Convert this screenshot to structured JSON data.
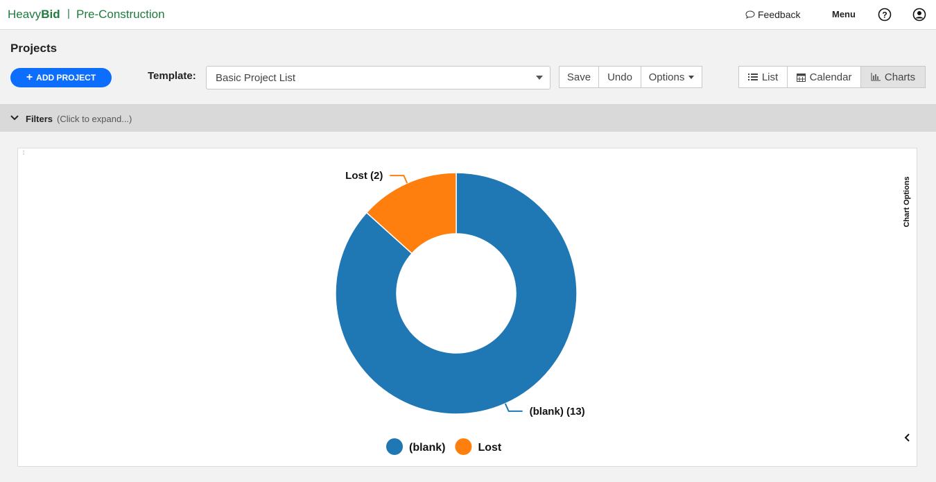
{
  "header": {
    "brand_light": "Heavy",
    "brand_bold": "Bid",
    "product": "Pre-Construction",
    "feedback": "Feedback",
    "menu": "Menu"
  },
  "toolbar": {
    "title": "Projects",
    "add_button": "ADD PROJECT",
    "template_label": "Template:",
    "template_value": "Basic Project List",
    "actions": [
      "Save",
      "Undo",
      "Options"
    ],
    "views": [
      "List",
      "Calendar",
      "Charts"
    ]
  },
  "filters": {
    "label": "Filters",
    "hint": "(Click to expand...)"
  },
  "chart_panel": {
    "options_label": "Chart Options"
  },
  "chart_data": {
    "type": "donut",
    "categories": [
      "(blank)",
      "Lost"
    ],
    "values": [
      13,
      2
    ],
    "value_labels": [
      "(blank) (13)",
      "Lost (2)"
    ],
    "series_colors": [
      "#1f77b4",
      "#ff7f0e"
    ],
    "legend": "bottom"
  }
}
